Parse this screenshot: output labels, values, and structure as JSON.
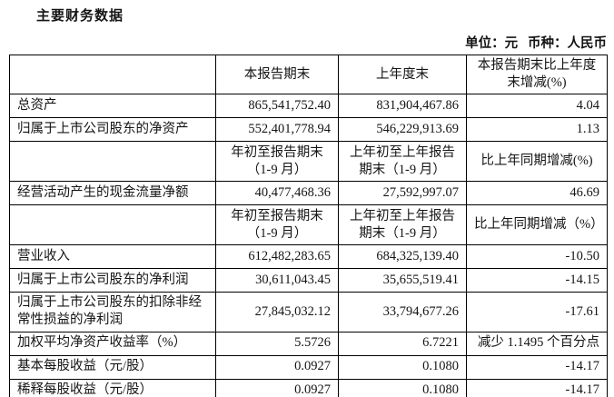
{
  "page": {
    "title": "主要财务数据",
    "unit_note": "单位：元   币种：人民币"
  },
  "table": {
    "rows": [
      {
        "type": "header",
        "cells": [
          "",
          "本报告期末",
          "上年度末",
          "本报告期末比上年度\n末增减(%)"
        ]
      },
      {
        "type": "data",
        "cells": [
          "总资产",
          "865,541,752.40",
          "831,904,467.86",
          "4.04"
        ]
      },
      {
        "type": "data",
        "cells": [
          "归属于上市公司股东的净资产",
          "552,401,778.94",
          "546,229,913.69",
          "1.13"
        ]
      },
      {
        "type": "subheader",
        "cells": [
          "",
          "年初至报告期末\n（1-9 月）",
          "上年初至上年报告\n期末（1-9 月）",
          "比上年同期增减(%)"
        ]
      },
      {
        "type": "data",
        "cells": [
          "经营活动产生的现金流量净额",
          "40,477,468.36",
          "27,592,997.07",
          "46.69"
        ]
      },
      {
        "type": "subheader",
        "cells": [
          "",
          "年初至报告期末\n（1-9 月）",
          "上年初至上年报告\n期末（1-9 月）",
          "比上年同期增减（%）"
        ]
      },
      {
        "type": "data",
        "cells": [
          "营业收入",
          "612,482,283.65",
          "684,325,139.40",
          "-10.50"
        ]
      },
      {
        "type": "data",
        "cells": [
          "归属于上市公司股东的净利润",
          "30,611,043.45",
          "35,655,519.41",
          "-14.15"
        ]
      },
      {
        "type": "data",
        "cells": [
          "归属于上市公司股东的扣除非经\n常性损益的净利润",
          "27,845,032.12",
          "33,794,677.26",
          "-17.61"
        ]
      },
      {
        "type": "data",
        "cells": [
          "加权平均净资产收益率（%）",
          "5.5726",
          "6.7221",
          "减少 1.1495 个百分点"
        ]
      },
      {
        "type": "data",
        "cells": [
          "基本每股收益（元/股）",
          "0.0927",
          "0.1080",
          "-14.17"
        ]
      },
      {
        "type": "data",
        "cells": [
          "稀释每股收益（元/股）",
          "0.0927",
          "0.1080",
          "-14.17"
        ]
      }
    ]
  }
}
